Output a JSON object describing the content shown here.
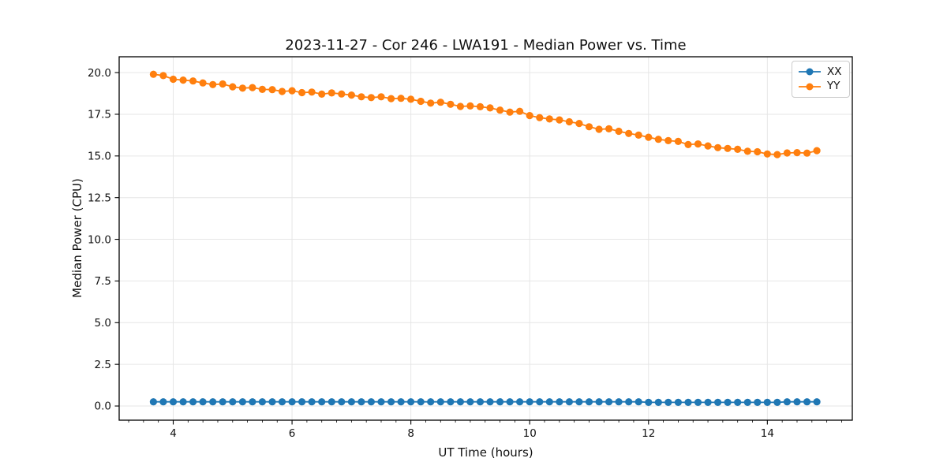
{
  "chart_data": {
    "type": "line",
    "title": "2023-11-27 - Cor 246 - LWA191 - Median Power vs. Time",
    "xlabel": "UT Time (hours)",
    "ylabel": "Median Power (CPU)",
    "xlim": [
      3.09,
      15.43
    ],
    "ylim": [
      -0.85,
      20.95
    ],
    "x_ticks": [
      4,
      6,
      8,
      10,
      12,
      14
    ],
    "x_tick_labels": [
      "4",
      "6",
      "8",
      "10",
      "12",
      "14"
    ],
    "x_minor_tick_step": 0.25,
    "y_ticks": [
      0,
      2.5,
      5,
      7.5,
      10,
      12.5,
      15,
      17.5,
      20
    ],
    "y_tick_labels": [
      "0.0",
      "2.5",
      "5.0",
      "7.5",
      "10.0",
      "12.5",
      "15.0",
      "17.5",
      "20.0"
    ],
    "grid": true,
    "legend_position": "upper right",
    "x": [
      3.667,
      3.833,
      4.0,
      4.167,
      4.333,
      4.5,
      4.667,
      4.833,
      5.0,
      5.167,
      5.333,
      5.5,
      5.667,
      5.833,
      6.0,
      6.167,
      6.333,
      6.5,
      6.667,
      6.833,
      7.0,
      7.167,
      7.333,
      7.5,
      7.667,
      7.833,
      8.0,
      8.167,
      8.333,
      8.5,
      8.667,
      8.833,
      9.0,
      9.167,
      9.333,
      9.5,
      9.667,
      9.833,
      10.0,
      10.167,
      10.333,
      10.5,
      10.667,
      10.833,
      11.0,
      11.167,
      11.333,
      11.5,
      11.667,
      11.833,
      12.0,
      12.167,
      12.333,
      12.5,
      12.667,
      12.833,
      13.0,
      13.167,
      13.333,
      13.5,
      13.667,
      13.833,
      14.0,
      14.167,
      14.333,
      14.5,
      14.667,
      14.833
    ],
    "series": [
      {
        "name": "XX",
        "color": "#1f77b4",
        "marker": "circle",
        "values": [
          0.25,
          0.25,
          0.25,
          0.25,
          0.25,
          0.25,
          0.25,
          0.25,
          0.25,
          0.25,
          0.25,
          0.25,
          0.25,
          0.25,
          0.25,
          0.25,
          0.25,
          0.25,
          0.25,
          0.25,
          0.25,
          0.25,
          0.25,
          0.25,
          0.25,
          0.25,
          0.25,
          0.25,
          0.25,
          0.25,
          0.25,
          0.25,
          0.25,
          0.25,
          0.25,
          0.25,
          0.25,
          0.25,
          0.25,
          0.25,
          0.25,
          0.25,
          0.25,
          0.25,
          0.25,
          0.25,
          0.25,
          0.25,
          0.25,
          0.25,
          0.22,
          0.22,
          0.22,
          0.22,
          0.22,
          0.22,
          0.22,
          0.22,
          0.22,
          0.22,
          0.22,
          0.22,
          0.22,
          0.22,
          0.25,
          0.25,
          0.25,
          0.25
        ]
      },
      {
        "name": "YY",
        "color": "#ff7f0e",
        "marker": "circle",
        "values": [
          19.9,
          19.82,
          19.6,
          19.55,
          19.5,
          19.38,
          19.28,
          19.32,
          19.15,
          19.07,
          19.1,
          18.99,
          18.98,
          18.87,
          18.91,
          18.8,
          18.83,
          18.71,
          18.78,
          18.72,
          18.65,
          18.55,
          18.5,
          18.55,
          18.44,
          18.46,
          18.4,
          18.28,
          18.17,
          18.22,
          18.1,
          17.97,
          18.0,
          17.95,
          17.88,
          17.75,
          17.63,
          17.68,
          17.42,
          17.3,
          17.22,
          17.16,
          17.05,
          16.95,
          16.75,
          16.6,
          16.63,
          16.48,
          16.35,
          16.25,
          16.12,
          16.0,
          15.92,
          15.87,
          15.68,
          15.72,
          15.6,
          15.5,
          15.45,
          15.4,
          15.28,
          15.25,
          15.12,
          15.08,
          15.18,
          15.2,
          15.17,
          15.32
        ]
      }
    ],
    "colors": {
      "background": "#ffffff",
      "grid": "#e6e6e6",
      "spine": "#000000",
      "text": "#111111",
      "legend_border": "#cccccc"
    }
  }
}
